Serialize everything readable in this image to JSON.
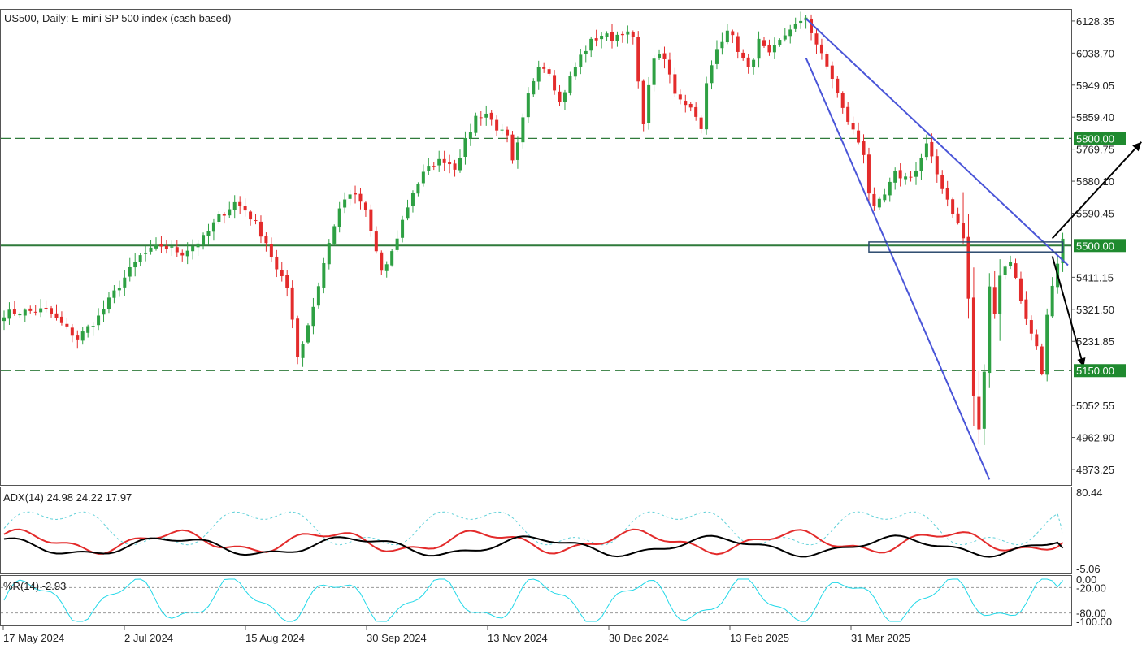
{
  "chart_data": {
    "type": "candlestick",
    "title": "US500, Daily:  E-mini SP 500 index (cash based)",
    "colors": {
      "up": "#2ea043",
      "down": "#e32b2b",
      "level": "#2f7a3a",
      "trend": "#4a55d8",
      "tag_bg": "#1f8a2f",
      "adx": "#000000",
      "di_plus": "#5fd0d8",
      "di_minus": "#e32b2b",
      "wpr": "#20d8e8"
    },
    "price_axis": {
      "labels": [
        "6128.35",
        "6038.70",
        "5949.05",
        "5859.40",
        "5769.75",
        "5680.10",
        "5590.45",
        "5411.15",
        "5321.50",
        "5231.85",
        "5052.55",
        "4962.90",
        "4873.25"
      ],
      "range": [
        4830,
        6160
      ]
    },
    "date_axis": {
      "labels": [
        "17 May 2024",
        "2 Jul 2024",
        "15 Aug 2024",
        "30 Sep 2024",
        "13 Nov 2024",
        "30 Dec 2024",
        "13 Feb 2025",
        "31 Mar 2025"
      ]
    },
    "levels": [
      {
        "value": 5800,
        "label": "5800.00",
        "style": "dashed"
      },
      {
        "value": 5500,
        "label": "5500.00",
        "style": "solid"
      },
      {
        "value": 5150,
        "label": "5150.00",
        "style": "dashed"
      }
    ],
    "price_path": [
      [
        0,
        5310
      ],
      [
        8,
        5320
      ],
      [
        14,
        5240
      ],
      [
        18,
        5300
      ],
      [
        22,
        5390
      ],
      [
        26,
        5470
      ],
      [
        30,
        5500
      ],
      [
        34,
        5480
      ],
      [
        38,
        5520
      ],
      [
        41,
        5580
      ],
      [
        44,
        5620
      ],
      [
        46,
        5600
      ],
      [
        48,
        5560
      ],
      [
        50,
        5510
      ],
      [
        52,
        5430
      ],
      [
        54,
        5380
      ],
      [
        55,
        5300
      ],
      [
        56,
        5190
      ],
      [
        57,
        5230
      ],
      [
        59,
        5330
      ],
      [
        61,
        5450
      ],
      [
        63,
        5560
      ],
      [
        65,
        5630
      ],
      [
        67,
        5640
      ],
      [
        69,
        5600
      ],
      [
        71,
        5480
      ],
      [
        72,
        5420
      ],
      [
        74,
        5480
      ],
      [
        76,
        5570
      ],
      [
        78,
        5650
      ],
      [
        80,
        5700
      ],
      [
        82,
        5730
      ],
      [
        84,
        5740
      ],
      [
        86,
        5720
      ],
      [
        88,
        5790
      ],
      [
        90,
        5860
      ],
      [
        92,
        5870
      ],
      [
        94,
        5830
      ],
      [
        96,
        5800
      ],
      [
        97,
        5730
      ],
      [
        98,
        5780
      ],
      [
        100,
        5920
      ],
      [
        102,
        6010
      ],
      [
        104,
        5990
      ],
      [
        106,
        5900
      ],
      [
        108,
        5970
      ],
      [
        110,
        6030
      ],
      [
        112,
        6070
      ],
      [
        114,
        6090
      ],
      [
        116,
        6080
      ],
      [
        118,
        6100
      ],
      [
        120,
        6080
      ],
      [
        121,
        5950
      ],
      [
        122,
        5850
      ],
      [
        124,
        6030
      ],
      [
        126,
        6020
      ],
      [
        128,
        5930
      ],
      [
        130,
        5900
      ],
      [
        132,
        5870
      ],
      [
        133,
        5820
      ],
      [
        134,
        5950
      ],
      [
        136,
        6050
      ],
      [
        138,
        6110
      ],
      [
        140,
        6050
      ],
      [
        142,
        5990
      ],
      [
        144,
        6070
      ],
      [
        146,
        6030
      ],
      [
        148,
        6070
      ],
      [
        150,
        6110
      ],
      [
        152,
        6120
      ],
      [
        153,
        6140
      ],
      [
        154,
        6100
      ],
      [
        156,
        6030
      ],
      [
        158,
        5970
      ],
      [
        160,
        5880
      ],
      [
        162,
        5820
      ],
      [
        164,
        5760
      ],
      [
        165,
        5650
      ],
      [
        166,
        5600
      ],
      [
        168,
        5640
      ],
      [
        170,
        5700
      ],
      [
        172,
        5690
      ],
      [
        174,
        5710
      ],
      [
        176,
        5780
      ],
      [
        178,
        5700
      ],
      [
        180,
        5630
      ],
      [
        182,
        5560
      ],
      [
        183,
        5520
      ],
      [
        184,
        5350
      ],
      [
        185,
        5080
      ],
      [
        186,
        4980
      ],
      [
        187,
        5150
      ],
      [
        188,
        5380
      ],
      [
        189,
        5320
      ],
      [
        190,
        5420
      ],
      [
        192,
        5460
      ],
      [
        194,
        5350
      ],
      [
        196,
        5250
      ],
      [
        197,
        5220
      ],
      [
        198,
        5150
      ],
      [
        199,
        5300
      ],
      [
        200,
        5380
      ],
      [
        201,
        5440
      ],
      [
        202,
        5510
      ]
    ],
    "trendlines": [
      {
        "start": [
          153,
          6135
        ],
        "end": [
          203,
          5445
        ]
      },
      {
        "start": [
          153,
          6025
        ],
        "end": [
          188,
          4845
        ]
      }
    ],
    "consolidation_box": {
      "x": [
        165,
        202
      ],
      "y": [
        5482,
        5510
      ]
    },
    "arrows": [
      {
        "start": [
          200,
          5520
        ],
        "end": [
          217,
          5790
        ]
      },
      {
        "start": [
          200,
          5470
        ],
        "end": [
          206,
          5160
        ]
      }
    ],
    "adx": {
      "label": "ADX(14) 24.98 24.22 17.97",
      "axis_labels": [
        "80.44",
        "-5.06"
      ],
      "range": [
        -5.06,
        80.44
      ],
      "values": [
        24.98,
        24.22,
        17.97
      ]
    },
    "wpr": {
      "label": "%R(14) -2.93",
      "axis_labels": [
        "0.00",
        "-20.00",
        "-80.00",
        "-100.00"
      ],
      "range": [
        -100,
        0
      ],
      "value": -2.93
    }
  }
}
